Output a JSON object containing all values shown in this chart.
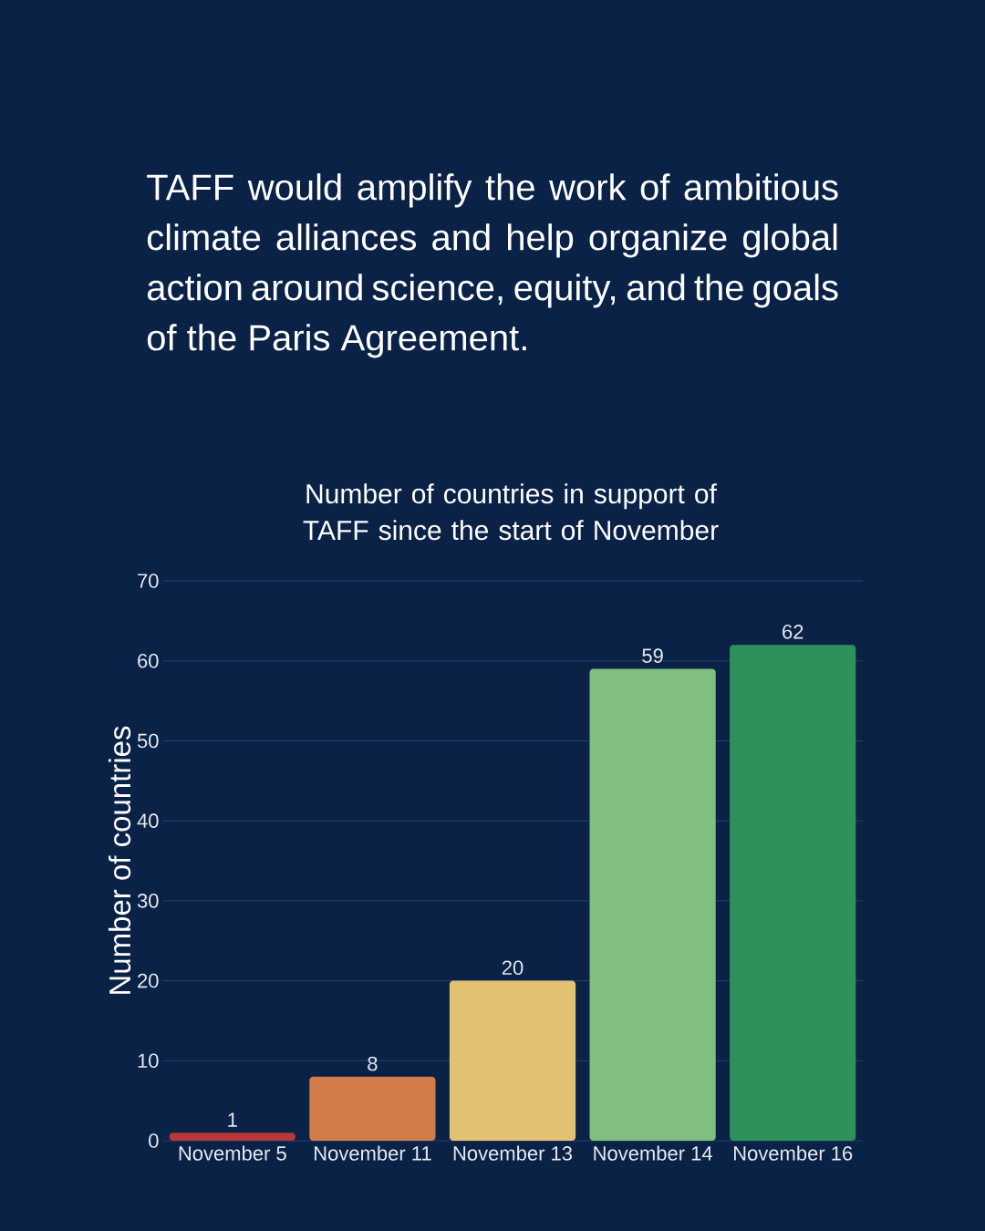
{
  "chart_data": {
    "type": "bar",
    "title": "TAFF would amplify the work of ambitious climate alliances and help organize global action around science, equity, and the goals of the Paris Agreement.",
    "subtitle": "Number of countries in support of TAFF since the start of November",
    "ylabel": "Number of countries",
    "categories": [
      "November 5",
      "November 11",
      "November 13",
      "November 14",
      "November 16"
    ],
    "values": [
      1,
      8,
      20,
      59,
      62
    ],
    "colors": [
      "#b8383a",
      "#d27c4a",
      "#e3c172",
      "#80bf7e",
      "#2e905a"
    ],
    "ylim": [
      0,
      70
    ],
    "yticks": [
      0,
      10,
      20,
      30,
      40,
      50,
      60,
      70
    ],
    "grid": "y",
    "data_labels": true
  }
}
